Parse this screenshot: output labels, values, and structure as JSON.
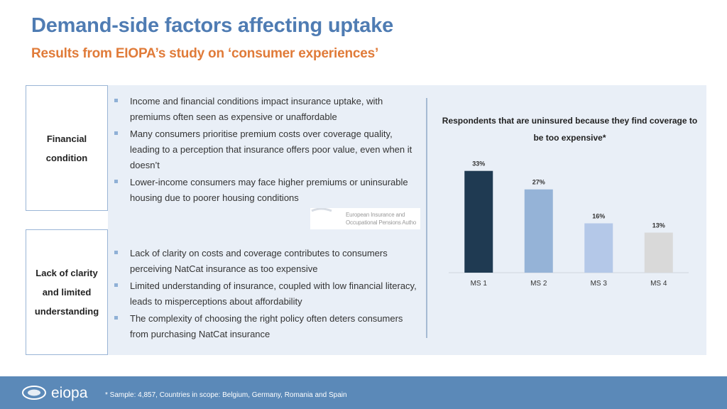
{
  "header": {
    "title": "Demand-side factors affecting uptake",
    "subtitle": "Results from EIOPA’s study on ‘consumer experiences’"
  },
  "sections": [
    {
      "label_lines": [
        "Financial",
        "condition"
      ],
      "bullets": [
        "Income and financial conditions impact insurance uptake, with premiums often seen as expensive or unaffordable",
        "Many consumers prioritise premium costs over coverage quality, leading to a perception that insurance offers poor value, even when it doesn’t",
        "Lower-income consumers may face higher premiums or uninsurable housing due to poorer housing conditions"
      ]
    },
    {
      "label_lines": [
        "Lack of clarity",
        "and limited",
        "understanding"
      ],
      "bullets": [
        "Lack of clarity on costs and coverage contributes to consumers perceiving NatCat insurance as too expensive",
        "Limited understanding of insurance, coupled with low financial literacy, leads to misperceptions about affordability",
        "The complexity of choosing the right policy often deters consumers from purchasing NatCat insurance"
      ]
    }
  ],
  "watermark": {
    "lines": [
      "European Insurance and",
      "Occupational Pensions Autho"
    ]
  },
  "chart_data": {
    "type": "bar",
    "title": "Respondents that are uninsured because they find coverage to be too expensive*",
    "categories": [
      "MS 1",
      "MS 2",
      "MS 3",
      "MS 4"
    ],
    "values": [
      33,
      27,
      16,
      13
    ],
    "data_labels": [
      "33%",
      "27%",
      "16%",
      "13%"
    ],
    "colors": [
      "#1f3a52",
      "#95b3d7",
      "#b4c8e8",
      "#d9d9d9"
    ],
    "ylim": [
      0,
      35
    ],
    "grid": false,
    "legend": "none"
  },
  "footer": {
    "logo_text": "eiopa",
    "footnote": "* Sample: 4,857, Countries in scope: Belgium, Germany, Romania and Spain"
  }
}
